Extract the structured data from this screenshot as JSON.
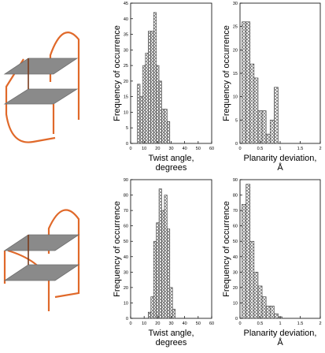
{
  "colors": {
    "strand": "#e0692a",
    "plane": "#8a8a8a",
    "plane_edge": "#6e6e6e",
    "stem": "#7a3b1c",
    "bar_fill": "#cfcfcf",
    "bar_stroke": "#3a3a3a",
    "axis": "#000000"
  },
  "illustrations": [
    {
      "name": "quadruplex-top",
      "label": ""
    },
    {
      "name": "quadruplex-bottom",
      "label": ""
    }
  ],
  "chart_data": [
    {
      "type": "bar",
      "title": "",
      "xlabel": "Twist angle, degrees",
      "ylabel": "Frequency of occurrence",
      "xlim": [
        0,
        60
      ],
      "ylim": [
        0,
        45
      ],
      "xticks": [
        0,
        10,
        20,
        30,
        40,
        50,
        60
      ],
      "yticks": [
        0,
        5,
        10,
        15,
        20,
        25,
        30,
        35,
        40,
        45
      ],
      "bin_width": 2,
      "x": [
        6,
        8,
        10,
        12,
        14,
        16,
        18,
        20,
        22,
        24,
        26,
        28
      ],
      "values": [
        19,
        15,
        25,
        29,
        36,
        36,
        42,
        25,
        20,
        11,
        11,
        7
      ],
      "grid": false
    },
    {
      "type": "bar",
      "title": "",
      "xlabel": "Planarity deviation, Å",
      "ylabel": "Frequency of occurrence",
      "xlim": [
        0,
        2
      ],
      "ylim": [
        0,
        30
      ],
      "xticks": [
        0,
        0.5,
        1,
        1.5,
        2
      ],
      "yticks": [
        0,
        5,
        10,
        15,
        20,
        25,
        30
      ],
      "bin_width": 0.1,
      "x": [
        0.1,
        0.2,
        0.3,
        0.4,
        0.5,
        0.6,
        0.7,
        0.8,
        0.9
      ],
      "values": [
        26,
        26,
        17,
        14,
        7,
        7,
        2,
        5,
        12
      ],
      "grid": false
    },
    {
      "type": "bar",
      "title": "",
      "xlabel": "Twist angle, degrees",
      "ylabel": "Frequency of occurrence",
      "xlim": [
        0,
        60
      ],
      "ylim": [
        0,
        90
      ],
      "xticks": [
        0,
        10,
        20,
        30,
        40,
        50,
        60
      ],
      "yticks": [
        0,
        10,
        20,
        30,
        40,
        50,
        60,
        70,
        80,
        90
      ],
      "bin_width": 2,
      "x": [
        14,
        16,
        18,
        20,
        22,
        24,
        26,
        28,
        30,
        32
      ],
      "values": [
        4,
        14,
        50,
        62,
        84,
        70,
        80,
        58,
        20,
        6
      ],
      "grid": false
    },
    {
      "type": "bar",
      "title": "",
      "xlabel": "Planarity deviation, Å",
      "ylabel": "Frequency of occurrence",
      "xlim": [
        0,
        2
      ],
      "ylim": [
        0,
        90
      ],
      "xticks": [
        0,
        0.5,
        1,
        1.5,
        2
      ],
      "yticks": [
        0,
        10,
        20,
        30,
        40,
        50,
        60,
        70,
        80,
        90
      ],
      "bin_width": 0.1,
      "x": [
        0.1,
        0.2,
        0.3,
        0.4,
        0.5,
        0.6,
        0.7,
        0.8,
        0.9,
        1.0
      ],
      "values": [
        74,
        87,
        50,
        30,
        21,
        14,
        8,
        8,
        3,
        1
      ],
      "grid": false
    }
  ]
}
